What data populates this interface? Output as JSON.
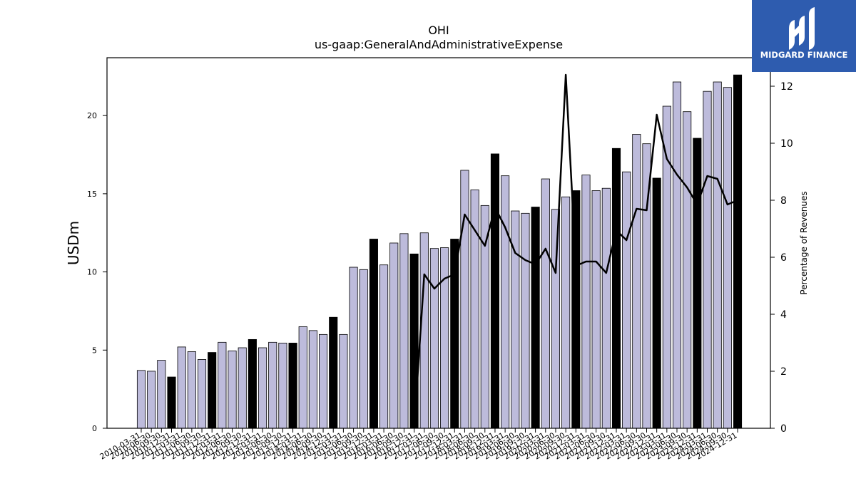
{
  "chart_data": {
    "type": "bar",
    "title": "OHI",
    "subtitle": "us-gaap:GeneralAndAdministrativeExpense",
    "ylabel": "USDm",
    "y2label": "Percentage of Revenues",
    "ylim": [
      0,
      23.7
    ],
    "y2lim": [
      0,
      13.0
    ],
    "yticks": [
      0,
      5,
      10,
      15,
      20
    ],
    "y2ticks": [
      0,
      2,
      4,
      6,
      8,
      10,
      12
    ],
    "categories": [
      "2010-03-31",
      "2010-06-30",
      "2010-09-30",
      "2010-12-31",
      "2011-03-31",
      "2011-06-30",
      "2011-09-30",
      "2011-12-31",
      "2012-03-31",
      "2012-06-30",
      "2012-09-30",
      "2012-12-31",
      "2013-03-31",
      "2013-06-30",
      "2013-09-30",
      "2013-12-31",
      "2014-03-31",
      "2014-06-30",
      "2014-09-30",
      "2014-12-31",
      "2015-03-31",
      "2015-06-30",
      "2015-09-30",
      "2015-12-31",
      "2016-03-31",
      "2016-06-30",
      "2016-09-30",
      "2016-12-31",
      "2017-03-31",
      "2017-06-30",
      "2017-09-30",
      "2017-12-31",
      "2018-03-31",
      "2018-06-30",
      "2018-09-30",
      "2018-12-31",
      "2019-03-31",
      "2019-06-30",
      "2019-09-30",
      "2019-12-31",
      "2020-03-31",
      "2020-06-30",
      "2020-09-30",
      "2020-12-31",
      "2021-03-31",
      "2021-06-30",
      "2021-09-30",
      "2021-12-31",
      "2022-03-31",
      "2022-06-30",
      "2022-09-30",
      "2022-12-31",
      "2023-03-31",
      "2023-06-30",
      "2023-09-30",
      "2023-12-31",
      "2024-03-31",
      "2024-06-30",
      "2024-09-30",
      "2024-12-31"
    ],
    "series": [
      {
        "kind": "bar",
        "values": [
          3.7,
          3.65,
          4.35,
          3.28,
          5.2,
          4.9,
          4.4,
          4.85,
          5.5,
          4.95,
          5.15,
          5.68,
          5.15,
          5.5,
          5.45,
          5.45,
          6.5,
          6.25,
          6.0,
          7.1,
          6.0,
          10.3,
          10.15,
          12.1,
          10.45,
          11.85,
          12.45,
          11.15,
          12.5,
          11.5,
          11.55,
          12.1,
          16.5,
          15.25,
          14.25,
          17.55,
          16.15,
          13.9,
          13.75,
          14.15,
          15.95,
          14.0,
          14.8,
          15.2,
          16.2,
          15.2,
          15.35,
          17.9,
          16.4,
          18.8,
          18.2,
          16.0,
          20.6,
          22.15,
          20.25,
          18.55,
          21.55,
          22.15,
          21.8,
          22.6
        ],
        "highlight": [
          false,
          false,
          false,
          true,
          false,
          false,
          false,
          true,
          false,
          false,
          false,
          true,
          false,
          false,
          false,
          true,
          false,
          false,
          false,
          true,
          false,
          false,
          false,
          true,
          false,
          false,
          false,
          true,
          false,
          false,
          false,
          true,
          false,
          false,
          false,
          true,
          false,
          false,
          false,
          true,
          false,
          false,
          false,
          true,
          false,
          false,
          false,
          true,
          false,
          false,
          false,
          true,
          false,
          false,
          false,
          true,
          false,
          false,
          false,
          true
        ],
        "colors": {
          "regular": "#bdbbdb",
          "highlight": "#000000",
          "edge": "#000000"
        }
      },
      {
        "kind": "line",
        "axis": "right",
        "values": [
          null,
          null,
          null,
          null,
          null,
          null,
          null,
          null,
          null,
          null,
          null,
          null,
          null,
          null,
          null,
          null,
          null,
          null,
          null,
          null,
          null,
          null,
          null,
          null,
          null,
          null,
          null,
          0.0,
          5.4,
          4.9,
          5.25,
          5.4,
          7.5,
          6.95,
          6.4,
          7.75,
          7.05,
          6.15,
          5.9,
          5.75,
          6.3,
          5.45,
          12.4,
          5.7,
          5.85,
          5.85,
          5.45,
          6.95,
          6.6,
          7.7,
          7.65,
          11.0,
          9.45,
          8.9,
          8.45,
          7.85,
          8.85,
          8.75,
          7.85,
          8.0
        ],
        "color": "#000000"
      }
    ],
    "grid": false
  },
  "logo": {
    "text": "MIDGARD FINANCE",
    "bg": "#2e5caf"
  }
}
